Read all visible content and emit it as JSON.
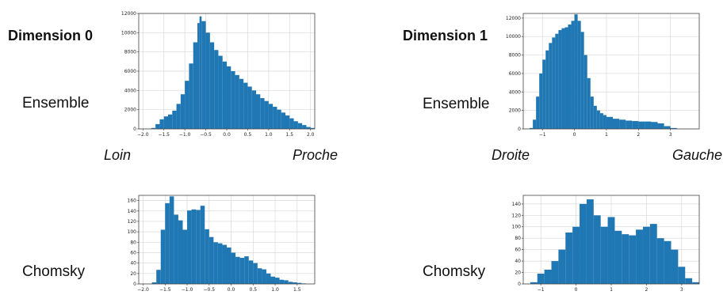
{
  "labels": {
    "dim0_title": "Dimension 0",
    "dim1_title": "Dimension 1",
    "row_ensemble_left": "Ensemble",
    "row_ensemble_right": "Ensemble",
    "row_chomsky_left": "Chomsky",
    "row_chomsky_right": "Chomsky",
    "dim0_left_word": "Loin",
    "dim0_right_word": "Proche",
    "dim1_left_word": "Droite",
    "dim1_right_word": "Gauche"
  },
  "colors": {
    "bar": "#1f77b4",
    "grid": "#d9d9d9",
    "axis": "#444444"
  },
  "chart_data": [
    {
      "type": "bar",
      "id": "dim0-ensemble",
      "title": "",
      "xlim": [
        -2.1,
        2.1
      ],
      "ylim": [
        0,
        12000
      ],
      "xticks": [
        -2.0,
        -1.5,
        -1.0,
        -0.5,
        0.0,
        0.5,
        1.0,
        1.5,
        2.0
      ],
      "xtick_labels": [
        "−2.0",
        "−1.5",
        "−1.0",
        "−0.5",
        "0.0",
        "0.5",
        "1.0",
        "1.5",
        "2.0"
      ],
      "yticks": [
        0,
        2000,
        4000,
        6000,
        8000,
        10000,
        12000
      ],
      "ytick_labels": [
        "0",
        "2000",
        "4000",
        "6000",
        "8000",
        "10000",
        "12000"
      ],
      "x": [
        -1.8,
        -1.7,
        -1.6,
        -1.5,
        -1.4,
        -1.3,
        -1.2,
        -1.1,
        -1.0,
        -0.9,
        -0.8,
        -0.7,
        -0.65,
        -0.6,
        -0.5,
        -0.4,
        -0.3,
        -0.2,
        -0.1,
        0.0,
        0.1,
        0.2,
        0.3,
        0.4,
        0.5,
        0.6,
        0.7,
        0.8,
        0.9,
        1.0,
        1.1,
        1.2,
        1.3,
        1.4,
        1.5,
        1.6,
        1.7,
        1.8,
        1.9,
        2.0
      ],
      "values": [
        100,
        500,
        1000,
        1300,
        1500,
        1900,
        2600,
        3600,
        5000,
        6800,
        9000,
        11000,
        11700,
        11200,
        10000,
        9000,
        8200,
        7600,
        7000,
        6500,
        6000,
        5600,
        5200,
        4800,
        4400,
        4000,
        3600,
        3200,
        2900,
        2600,
        2300,
        2000,
        1700,
        1400,
        1100,
        800,
        600,
        400,
        200,
        100
      ]
    },
    {
      "type": "bar",
      "id": "dim1-ensemble",
      "title": "",
      "xlim": [
        -1.6,
        3.9
      ],
      "ylim": [
        0,
        12500
      ],
      "xticks": [
        -1,
        0,
        1,
        2,
        3
      ],
      "xtick_labels": [
        "−1",
        "0",
        "1",
        "2",
        "3"
      ],
      "yticks": [
        0,
        2000,
        4000,
        6000,
        8000,
        10000,
        12000
      ],
      "ytick_labels": [
        "0",
        "2000",
        "4000",
        "6000",
        "8000",
        "10000",
        "12000"
      ],
      "x": [
        -1.4,
        -1.3,
        -1.2,
        -1.1,
        -1.0,
        -0.9,
        -0.8,
        -0.7,
        -0.6,
        -0.5,
        -0.4,
        -0.3,
        -0.2,
        -0.1,
        0.0,
        0.1,
        0.2,
        0.3,
        0.4,
        0.5,
        0.6,
        0.7,
        0.8,
        0.9,
        1.0,
        1.2,
        1.4,
        1.6,
        1.8,
        2.0,
        2.2,
        2.4,
        2.6,
        2.8,
        3.0
      ],
      "values": [
        100,
        1000,
        3500,
        6000,
        7500,
        8500,
        9300,
        9900,
        10300,
        10700,
        10900,
        11000,
        11300,
        11700,
        12400,
        11700,
        10500,
        8000,
        5500,
        3500,
        2500,
        2000,
        1700,
        1500,
        1300,
        1100,
        1000,
        900,
        850,
        800,
        800,
        750,
        600,
        300,
        100
      ]
    },
    {
      "type": "bar",
      "id": "dim0-chomsky",
      "title": "",
      "xlim": [
        -2.1,
        1.9
      ],
      "ylim": [
        0,
        170
      ],
      "xticks": [
        -2.0,
        -1.5,
        -1.0,
        -0.5,
        0.0,
        0.5,
        1.0,
        1.5
      ],
      "xtick_labels": [
        "−2.0",
        "−1.5",
        "−1.0",
        "−0.5",
        "0.0",
        "0.5",
        "1.0",
        "1.5"
      ],
      "yticks": [
        0,
        20,
        40,
        60,
        80,
        100,
        120,
        140,
        160
      ],
      "ytick_labels": [
        "0",
        "20",
        "40",
        "60",
        "80",
        "100",
        "120",
        "140",
        "160"
      ],
      "x": [
        -1.8,
        -1.7,
        -1.6,
        -1.5,
        -1.4,
        -1.3,
        -1.2,
        -1.1,
        -1.0,
        -0.9,
        -0.8,
        -0.7,
        -0.6,
        -0.5,
        -0.4,
        -0.3,
        -0.2,
        -0.1,
        0.0,
        0.1,
        0.2,
        0.3,
        0.4,
        0.5,
        0.6,
        0.7,
        0.8,
        0.9,
        1.0,
        1.1,
        1.2,
        1.3,
        1.4,
        1.5,
        1.6
      ],
      "values": [
        3,
        27,
        104,
        155,
        168,
        133,
        122,
        104,
        141,
        143,
        142,
        150,
        105,
        90,
        80,
        78,
        75,
        70,
        60,
        52,
        50,
        53,
        45,
        40,
        30,
        28,
        20,
        14,
        12,
        8,
        7,
        4,
        3,
        2,
        1
      ]
    },
    {
      "type": "bar",
      "id": "dim1-chomsky",
      "title": "",
      "xlim": [
        -1.5,
        3.5
      ],
      "ylim": [
        0,
        155
      ],
      "xticks": [
        -1,
        0,
        1,
        2,
        3
      ],
      "xtick_labels": [
        "−1",
        "0",
        "1",
        "2",
        "3"
      ],
      "yticks": [
        0,
        20,
        40,
        60,
        80,
        100,
        120,
        140
      ],
      "ytick_labels": [
        "0",
        "20",
        "40",
        "60",
        "80",
        "100",
        "120",
        "140"
      ],
      "x": [
        -1.3,
        -1.1,
        -0.9,
        -0.7,
        -0.5,
        -0.3,
        -0.1,
        0.1,
        0.3,
        0.5,
        0.7,
        0.9,
        1.1,
        1.3,
        1.5,
        1.7,
        1.9,
        2.1,
        2.3,
        2.5,
        2.7,
        2.9,
        3.1,
        3.3
      ],
      "values": [
        3,
        18,
        25,
        40,
        60,
        90,
        100,
        140,
        148,
        120,
        100,
        117,
        93,
        87,
        85,
        95,
        100,
        105,
        80,
        75,
        60,
        30,
        10,
        3
      ]
    }
  ]
}
